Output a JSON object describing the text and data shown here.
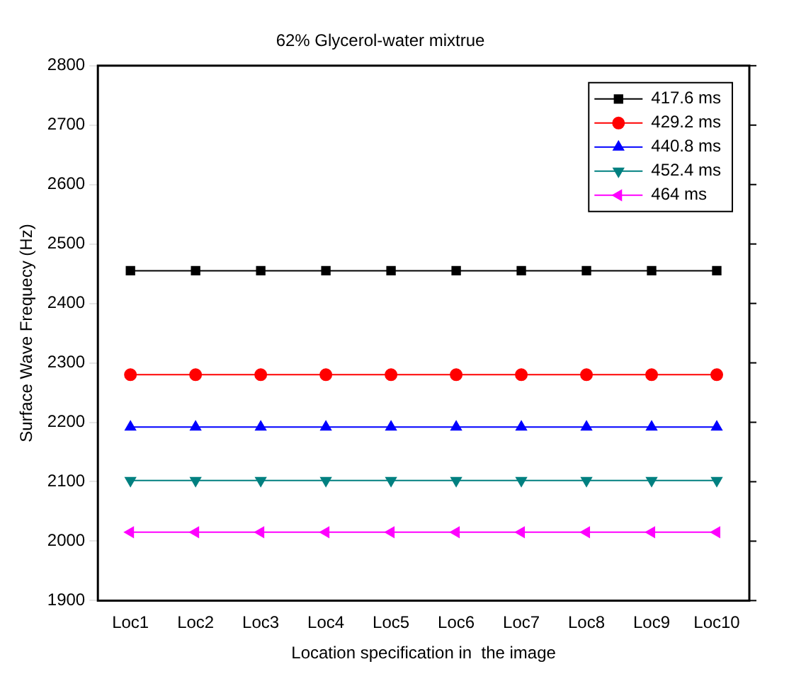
{
  "chart_data": {
    "type": "line",
    "title": "62% Glycerol-water mixtrue",
    "xlabel": "Location specification in  the image",
    "ylabel": "Surface Wave Frequecy (Hz)",
    "categories": [
      "Loc1",
      "Loc2",
      "Loc3",
      "Loc4",
      "Loc5",
      "Loc6",
      "Loc7",
      "Loc8",
      "Loc9",
      "Loc10"
    ],
    "series": [
      {
        "name": "417.6 ms",
        "color": "#000000",
        "marker": "square",
        "values": [
          2455,
          2455,
          2455,
          2455,
          2455,
          2455,
          2455,
          2455,
          2455,
          2455
        ]
      },
      {
        "name": "429.2 ms",
        "color": "#ff0000",
        "marker": "circle",
        "values": [
          2280,
          2280,
          2280,
          2280,
          2280,
          2280,
          2280,
          2280,
          2280,
          2280
        ]
      },
      {
        "name": "440.8 ms",
        "color": "#0000ff",
        "marker": "triangle",
        "values": [
          2192,
          2192,
          2192,
          2192,
          2192,
          2192,
          2192,
          2192,
          2192,
          2192
        ]
      },
      {
        "name": "452.4 ms",
        "color": "#008080",
        "marker": "triangle-down",
        "values": [
          2102,
          2102,
          2102,
          2102,
          2102,
          2102,
          2102,
          2102,
          2102,
          2102
        ]
      },
      {
        "name": "464 ms",
        "color": "#ff00ff",
        "marker": "triangle-left",
        "values": [
          2015,
          2015,
          2015,
          2015,
          2015,
          2015,
          2015,
          2015,
          2015,
          2015
        ]
      }
    ],
    "ylim": [
      1900,
      2800
    ],
    "yticks": [
      1900,
      2000,
      2100,
      2200,
      2300,
      2400,
      2500,
      2600,
      2700,
      2800
    ],
    "grid": false,
    "legend": "top right"
  }
}
